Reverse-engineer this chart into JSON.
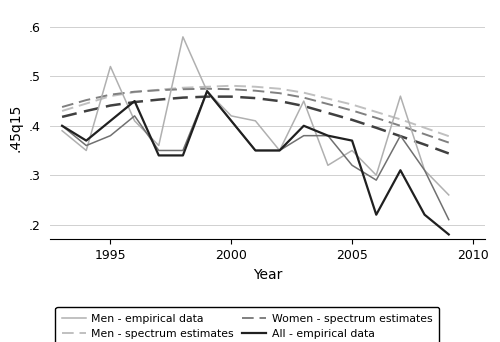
{
  "years_empirical": [
    1993,
    1994,
    1995,
    1996,
    1997,
    1998,
    1999,
    2000,
    2001,
    2002,
    2003,
    2004,
    2005,
    2006,
    2007,
    2008,
    2009
  ],
  "men_empirical": [
    0.39,
    0.35,
    0.52,
    0.41,
    0.36,
    0.58,
    0.47,
    0.42,
    0.41,
    0.35,
    0.45,
    0.32,
    0.35,
    0.3,
    0.46,
    0.31,
    0.26
  ],
  "women_empirical": [
    0.4,
    0.36,
    0.38,
    0.42,
    0.35,
    0.35,
    0.47,
    0.41,
    0.35,
    0.35,
    0.38,
    0.38,
    0.32,
    0.29,
    0.38,
    0.31,
    0.21
  ],
  "all_empirical": [
    0.4,
    0.37,
    0.41,
    0.45,
    0.34,
    0.34,
    0.47,
    0.41,
    0.35,
    0.35,
    0.4,
    0.38,
    0.37,
    0.22,
    0.31,
    0.22,
    0.18
  ],
  "years_spectrum": [
    1993,
    1994,
    1995,
    1996,
    1997,
    1998,
    1999,
    2000,
    2001,
    2002,
    2003,
    2004,
    2005,
    2006,
    2007,
    2008,
    2009
  ],
  "men_spectrum": [
    0.43,
    0.445,
    0.46,
    0.468,
    0.473,
    0.477,
    0.479,
    0.481,
    0.479,
    0.475,
    0.467,
    0.455,
    0.443,
    0.428,
    0.413,
    0.396,
    0.379
  ],
  "women_spectrum": [
    0.438,
    0.452,
    0.463,
    0.469,
    0.472,
    0.474,
    0.475,
    0.474,
    0.471,
    0.466,
    0.457,
    0.444,
    0.431,
    0.416,
    0.4,
    0.383,
    0.366
  ],
  "all_spectrum": [
    0.418,
    0.43,
    0.441,
    0.448,
    0.453,
    0.457,
    0.459,
    0.459,
    0.456,
    0.45,
    0.44,
    0.426,
    0.412,
    0.396,
    0.379,
    0.362,
    0.344
  ],
  "men_color": "#b0b0b0",
  "women_color": "#707070",
  "all_color": "#202020",
  "men_spec_color": "#c0c0c0",
  "women_spec_color": "#808080",
  "all_spec_color": "#404040",
  "ylabel": ".45q15",
  "xlabel": "Year",
  "ylim": [
    0.17,
    0.62
  ],
  "yticks": [
    0.2,
    0.3,
    0.4,
    0.5,
    0.6
  ],
  "ytick_labels": [
    ".2",
    ".3",
    ".4",
    ".5",
    ".6"
  ],
  "xlim": [
    1992.5,
    2010.5
  ],
  "xticks": [
    1995,
    2000,
    2005,
    2010
  ]
}
